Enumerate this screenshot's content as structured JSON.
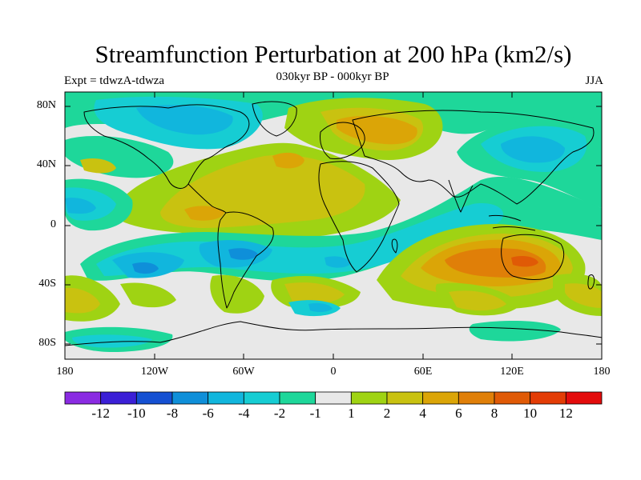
{
  "title": "Streamfunction Perturbation at 200 hPa (km2/s)",
  "subtitle": "030kyr BP - 000kyr BP",
  "experiment": "Expt = tdwzA-tdwza",
  "season": "JJA",
  "y_tick_labels": [
    "80N",
    "40N",
    "0",
    "40S",
    "80S"
  ],
  "x_tick_labels": [
    "180",
    "120W",
    "60W",
    "0",
    "60E",
    "120E",
    "180"
  ],
  "colorbar": {
    "labels": [
      "-12",
      "-10",
      "-8",
      "-6",
      "-4",
      "-2",
      "-1",
      "1",
      "2",
      "4",
      "6",
      "8",
      "10",
      "12"
    ],
    "colors": [
      "#8a2be2",
      "#3b1fd6",
      "#1550d2",
      "#0f8fd9",
      "#11b6dd",
      "#16cdd3",
      "#1ed79a",
      "#e8e8e8",
      "#9fd313",
      "#c9c210",
      "#dba507",
      "#e07f08",
      "#e05a06",
      "#e33c05",
      "#e30b0b"
    ]
  },
  "palette": {
    "neutral": "#e8e8e8",
    "green": "#1ed79a",
    "cyan": "#16cdd3",
    "light_blue": "#11b6dd",
    "blue": "#0f8fd9",
    "lime": "#9fd313",
    "olive": "#c9c210",
    "gold": "#dba507",
    "orange": "#e07f08"
  }
}
